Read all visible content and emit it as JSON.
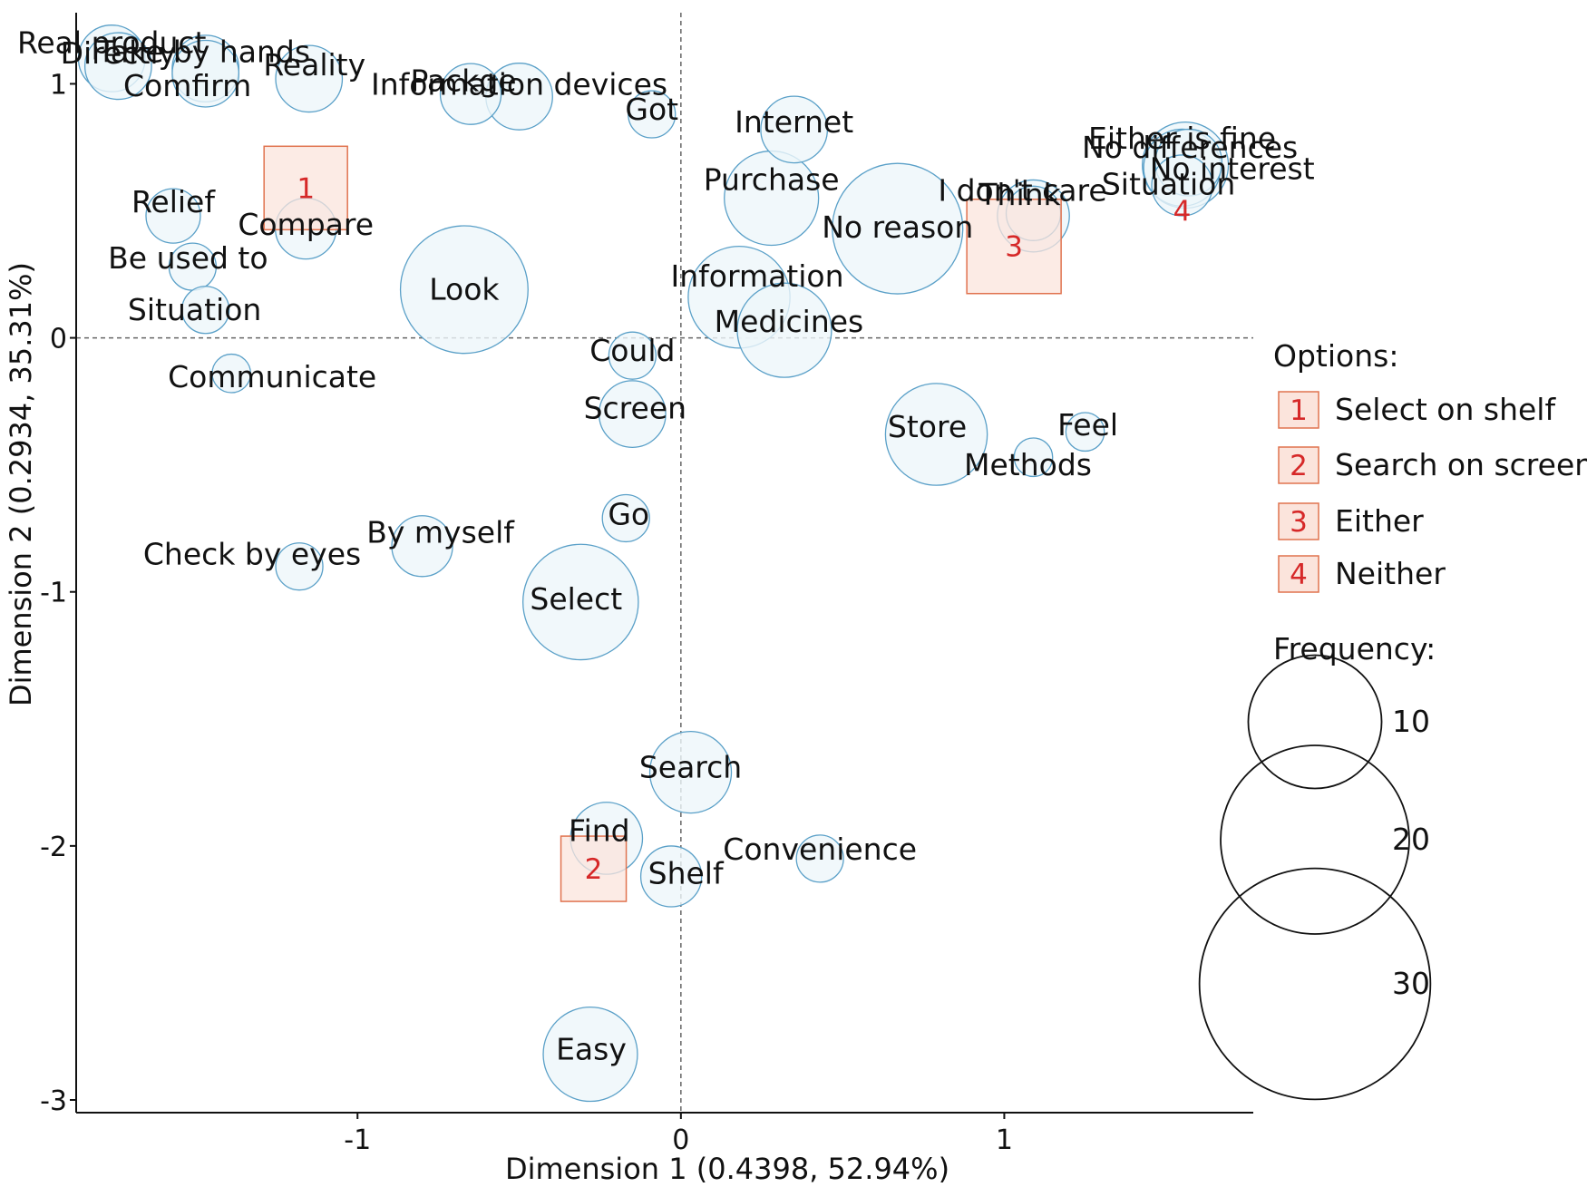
{
  "chart_data": {
    "type": "scatter",
    "subtype": "bubble-correspondence-analysis",
    "xlabel": "Dimension 1   (0.4398,    52.94%)",
    "ylabel": "Dimension 2   (0.2934,    35.31%)",
    "xlim": [
      -1.87,
      1.77
    ],
    "ylim": [
      -3.05,
      1.28
    ],
    "x_ticks": [
      -1,
      0,
      1
    ],
    "x_tick_labels": [
      "-1",
      "0",
      "1"
    ],
    "y_ticks": [
      -3,
      -2,
      -1,
      0,
      1
    ],
    "y_tick_labels": [
      "-3",
      "-2",
      "-1",
      "0",
      "1"
    ],
    "reference_lines": {
      "x": 0,
      "y": 0,
      "style": "dashed"
    },
    "grid": false,
    "colors": {
      "bubble_fill": "#eef6fa",
      "bubble_stroke": "#5aa0c8",
      "option_fill": "#fbe4dc",
      "option_stroke": "#e0734f",
      "option_text": "#d62828"
    },
    "words": [
      {
        "label": "Real product",
        "x": -1.76,
        "y": 1.1,
        "freq": 6
      },
      {
        "label": "Directly",
        "x": -1.74,
        "y": 1.07,
        "freq": 6
      },
      {
        "label": "Take by hands",
        "x": -1.47,
        "y": 1.06,
        "freq": 6
      },
      {
        "label": "Comfirm",
        "x": -1.47,
        "y": 1.04,
        "freq": 6
      },
      {
        "label": "Reality",
        "x": -1.15,
        "y": 1.02,
        "freq": 6
      },
      {
        "label": "Packge",
        "x": -0.65,
        "y": 0.96,
        "freq": 5
      },
      {
        "label": "Information devices",
        "x": -0.5,
        "y": 0.95,
        "freq": 6
      },
      {
        "label": "Got",
        "x": -0.09,
        "y": 0.88,
        "freq": 3
      },
      {
        "label": "Internet",
        "x": 0.35,
        "y": 0.82,
        "freq": 6
      },
      {
        "label": "No differences",
        "x": 1.56,
        "y": 0.68,
        "freq": 10
      },
      {
        "label": "Either is fine",
        "x": 1.55,
        "y": 0.67,
        "freq": 8
      },
      {
        "label": "No interest",
        "x": 1.57,
        "y": 0.69,
        "freq": 6
      },
      {
        "label": "Purchase",
        "x": 0.28,
        "y": 0.55,
        "freq": 12
      },
      {
        "label": "No reason",
        "x": 0.67,
        "y": 0.43,
        "freq": 23
      },
      {
        "label": "Think",
        "x": 1.09,
        "y": 0.48,
        "freq": 7
      },
      {
        "label": "Situation",
        "x": 1.55,
        "y": 0.6,
        "freq": 5
      },
      {
        "label": "I don't care",
        "x": 1.09,
        "y": 0.49,
        "freq": 4
      },
      {
        "label": "Relief",
        "x": -1.57,
        "y": 0.48,
        "freq": 4
      },
      {
        "label": "Compare",
        "x": -1.16,
        "y": 0.43,
        "freq": 5
      },
      {
        "label": "Be used to",
        "x": -1.51,
        "y": 0.28,
        "freq": 3
      },
      {
        "label": "Situation",
        "x": -1.47,
        "y": 0.11,
        "freq": 3
      },
      {
        "label": "Look",
        "x": -0.67,
        "y": 0.19,
        "freq": 22
      },
      {
        "label": "Information",
        "x": 0.18,
        "y": 0.16,
        "freq": 14
      },
      {
        "label": "Medicines",
        "x": 0.32,
        "y": 0.03,
        "freq": 12
      },
      {
        "label": "Could",
        "x": -0.15,
        "y": -0.07,
        "freq": 3
      },
      {
        "label": "Communicate",
        "x": -1.39,
        "y": -0.14,
        "freq": 2
      },
      {
        "label": "Screen",
        "x": -0.15,
        "y": -0.3,
        "freq": 6
      },
      {
        "label": "Store",
        "x": 0.79,
        "y": -0.38,
        "freq": 14
      },
      {
        "label": "Feel",
        "x": 1.25,
        "y": -0.37,
        "freq": 2
      },
      {
        "label": "Methods",
        "x": 1.09,
        "y": -0.47,
        "freq": 2
      },
      {
        "label": "Go",
        "x": -0.17,
        "y": -0.71,
        "freq": 3
      },
      {
        "label": "Check by eyes",
        "x": -1.18,
        "y": -0.9,
        "freq": 3
      },
      {
        "label": "By myself",
        "x": -0.8,
        "y": -0.82,
        "freq": 5
      },
      {
        "label": "Select",
        "x": -0.31,
        "y": -1.04,
        "freq": 18
      },
      {
        "label": "Search",
        "x": 0.03,
        "y": -1.71,
        "freq": 9
      },
      {
        "label": "Find",
        "x": -0.23,
        "y": -1.97,
        "freq": 7
      },
      {
        "label": "Shelf",
        "x": -0.03,
        "y": -2.12,
        "freq": 5
      },
      {
        "label": "Convenience",
        "x": 0.43,
        "y": -2.05,
        "freq": 3
      },
      {
        "label": "Easy",
        "x": -0.28,
        "y": -2.82,
        "freq": 12
      }
    ],
    "options": [
      {
        "number": "1",
        "name": "Select on shelf",
        "x": -1.16,
        "y": 0.59
      },
      {
        "number": "2",
        "name": "Search on screen",
        "x": -0.27,
        "y": -2.09
      },
      {
        "number": "3",
        "name": "Either",
        "x": 1.03,
        "y": 0.36
      },
      {
        "number": "4",
        "name": "Neither",
        "x": 1.55,
        "y": 0.5
      }
    ],
    "legend": {
      "placement": "right",
      "options_title": "Options:",
      "frequency_title": "Frequency:",
      "frequency_sizes": [
        10,
        20,
        30
      ]
    }
  }
}
